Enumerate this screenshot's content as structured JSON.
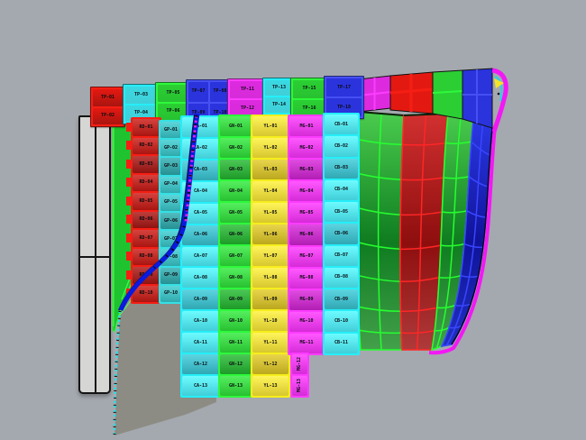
{
  "app": {
    "name": "3d-paneling-viewport",
    "background": "#A4A9AF",
    "shadow_color": "#8D8C84",
    "plank_color": "#D6D6D4"
  },
  "palette": {
    "red": {
      "fill": "#A91510",
      "dark": "#8E1210",
      "border": "#F51E14",
      "box": "#E31911"
    },
    "teal": {
      "fill": "#2FA9AC",
      "dark": "#268F92",
      "border": "#35E0E4",
      "box": "#2FA9AC"
    },
    "cyan": {
      "fill": "#41CED8",
      "dark": "#2FA8B4",
      "border": "#25EEF8",
      "box": "#38D9E2"
    },
    "green": {
      "fill": "#28C131",
      "dark": "#1E9A28",
      "border": "#2EF83C",
      "box": "#2BCF33"
    },
    "yellow": {
      "fill": "#D8C72E",
      "dark": "#BCA81E",
      "border": "#F6EE1C",
      "box": "#D8C72E"
    },
    "magenta": {
      "fill": "#D62BD8",
      "dark": "#B21EB4",
      "border": "#FC3CFE",
      "box": "#DD2ADF"
    },
    "blue": {
      "fill": "#2A33DC",
      "dark": "#1A1FA8",
      "border": "#4650F2",
      "box": "#2A33DC"
    },
    "hull": {
      "green_line": "#26FF30",
      "red_line": "#FF2626",
      "blue_line": "#3946FF",
      "rim": "#F318F5",
      "curl_inner": "#20D8E8",
      "curl_arrow": "#F5E428",
      "unroll_curve": "#0A1ADF",
      "stipple": "#E41EE6",
      "edge_stipple": "#18E4EC"
    }
  },
  "top_row": {
    "boxes": [
      {
        "color": "red",
        "labels": [
          "TP-01",
          "TP-02"
        ]
      },
      {
        "color": "cyan",
        "labels": [
          "TP-03",
          "TP-04"
        ]
      },
      {
        "color": "green",
        "labels": [
          "TP-05",
          "TP-06"
        ]
      },
      {
        "color": "blue",
        "labels": [
          "TP-07",
          "TP-08",
          "TP-09",
          "TP-10"
        ]
      },
      {
        "color": "magenta",
        "labels": [
          "TP-11",
          "TP-12"
        ]
      },
      {
        "color": "cyan",
        "labels": [
          "TP-13",
          "TP-14"
        ]
      },
      {
        "color": "green",
        "labels": [
          "TP-15",
          "TP-16"
        ]
      },
      {
        "color": "blue",
        "labels": [
          "TP-17",
          "TP-18"
        ]
      }
    ]
  },
  "panel_columns": [
    {
      "id": "red",
      "color": "red",
      "labels": [
        "RD-01",
        "RD-02",
        "RD-03",
        "RD-04",
        "RD-05",
        "RD-06",
        "RD-07",
        "RD-08",
        "RD-09",
        "RD-10"
      ]
    },
    {
      "id": "teal",
      "color": "teal",
      "labels": [
        "GP-01",
        "GP-02",
        "GP-03",
        "GP-04",
        "GP-05",
        "GP-06",
        "GP-07",
        "GP-08",
        "GP-09",
        "GP-10"
      ]
    },
    {
      "id": "cyan-a",
      "color": "cyan",
      "labels": [
        "CA-01",
        "CA-02",
        "CA-03",
        "CA-04",
        "CA-05",
        "CA-06",
        "CA-07",
        "CA-08",
        "CA-09",
        "CA-10",
        "CA-11",
        "CA-12",
        "CA-13"
      ]
    },
    {
      "id": "green",
      "color": "green",
      "labels": [
        "GN-01",
        "GN-02",
        "GN-03",
        "GN-04",
        "GN-05",
        "GN-06",
        "GN-07",
        "GN-08",
        "GN-09",
        "GN-10",
        "GN-11",
        "GN-12",
        "GN-13"
      ]
    },
    {
      "id": "yellow",
      "color": "yellow",
      "labels": [
        "YL-01",
        "YL-02",
        "YL-03",
        "YL-04",
        "YL-05",
        "YL-06",
        "YL-07",
        "YL-08",
        "YL-09",
        "YL-10",
        "YL-11",
        "YL-12",
        "YL-13"
      ]
    },
    {
      "id": "magenta",
      "color": "magenta",
      "labels": [
        "MG-01",
        "MG-02",
        "MG-03",
        "MG-04",
        "MG-05",
        "MG-06",
        "MG-07",
        "MG-08",
        "MG-09",
        "MG-10",
        "MG-11"
      ],
      "tail_labels": [
        "MG-12",
        "MG-13"
      ]
    },
    {
      "id": "cyan-b",
      "color": "cyan",
      "labels": [
        "CB-01",
        "CB-02",
        "CB-03",
        "CB-04",
        "CB-05",
        "CB-06",
        "CB-07",
        "CB-08",
        "CB-09",
        "CB-10",
        "CB-11"
      ]
    }
  ]
}
